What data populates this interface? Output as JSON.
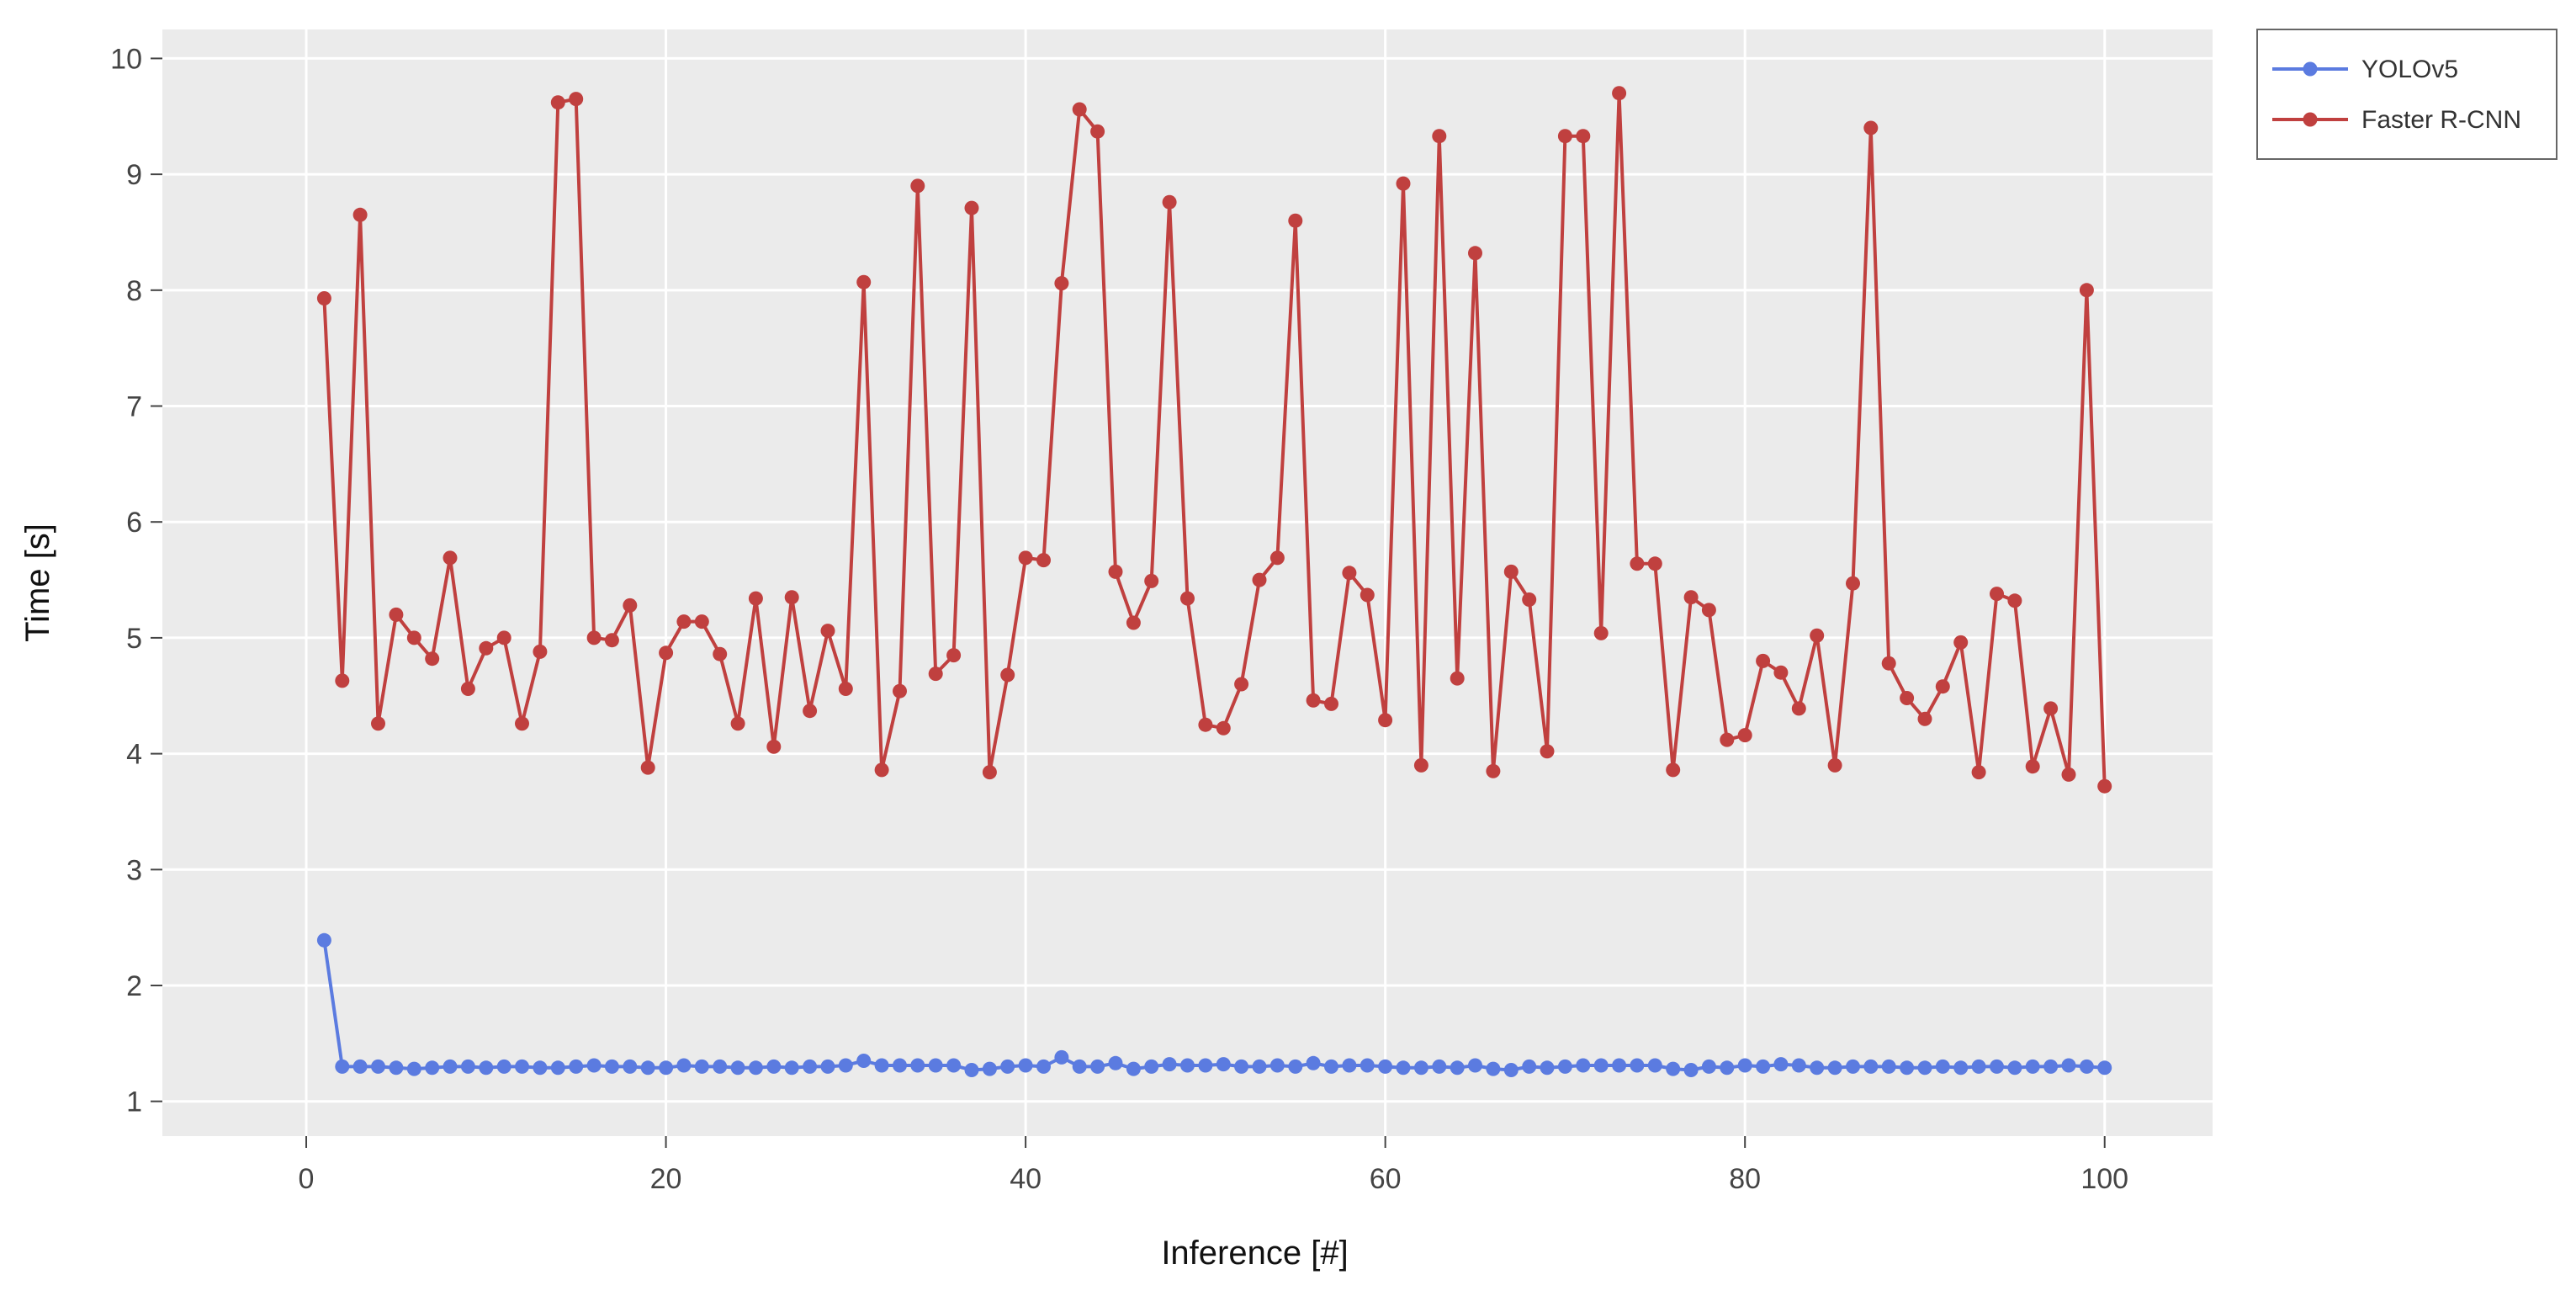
{
  "chart_data": {
    "type": "line",
    "title": "",
    "xlabel": "Inference [#]",
    "ylabel": "Time [s]",
    "xlim": [
      -8,
      106
    ],
    "ylim": [
      0.7,
      10.25
    ],
    "xticks": [
      0,
      20,
      40,
      60,
      80,
      100
    ],
    "yticks": [
      1,
      2,
      3,
      4,
      5,
      6,
      7,
      8,
      9,
      10
    ],
    "grid": true,
    "legend_position": "top-right",
    "x": [
      1,
      2,
      3,
      4,
      5,
      6,
      7,
      8,
      9,
      10,
      11,
      12,
      13,
      14,
      15,
      16,
      17,
      18,
      19,
      20,
      21,
      22,
      23,
      24,
      25,
      26,
      27,
      28,
      29,
      30,
      31,
      32,
      33,
      34,
      35,
      36,
      37,
      38,
      39,
      40,
      41,
      42,
      43,
      44,
      45,
      46,
      47,
      48,
      49,
      50,
      51,
      52,
      53,
      54,
      55,
      56,
      57,
      58,
      59,
      60,
      61,
      62,
      63,
      64,
      65,
      66,
      67,
      68,
      69,
      70,
      71,
      72,
      73,
      74,
      75,
      76,
      77,
      78,
      79,
      80,
      81,
      82,
      83,
      84,
      85,
      86,
      87,
      88,
      89,
      90,
      91,
      92,
      93,
      94,
      95,
      96,
      97,
      98,
      99,
      100
    ],
    "series": [
      {
        "name": "YOLOv5",
        "color": "#5B7BE0",
        "values": [
          2.39,
          1.3,
          1.3,
          1.3,
          1.29,
          1.28,
          1.29,
          1.3,
          1.3,
          1.29,
          1.3,
          1.3,
          1.29,
          1.29,
          1.3,
          1.31,
          1.3,
          1.3,
          1.29,
          1.29,
          1.31,
          1.3,
          1.3,
          1.29,
          1.29,
          1.3,
          1.29,
          1.3,
          1.3,
          1.31,
          1.35,
          1.31,
          1.31,
          1.31,
          1.31,
          1.31,
          1.27,
          1.28,
          1.3,
          1.31,
          1.3,
          1.38,
          1.3,
          1.3,
          1.33,
          1.28,
          1.3,
          1.32,
          1.31,
          1.31,
          1.32,
          1.3,
          1.3,
          1.31,
          1.3,
          1.33,
          1.3,
          1.31,
          1.31,
          1.3,
          1.29,
          1.29,
          1.3,
          1.29,
          1.31,
          1.28,
          1.27,
          1.3,
          1.29,
          1.3,
          1.31,
          1.31,
          1.31,
          1.31,
          1.31,
          1.28,
          1.27,
          1.3,
          1.29,
          1.31,
          1.3,
          1.32,
          1.31,
          1.29,
          1.29,
          1.3,
          1.3,
          1.3,
          1.29,
          1.29,
          1.3,
          1.29,
          1.3,
          1.3,
          1.29,
          1.3,
          1.3,
          1.31,
          1.3,
          1.29
        ]
      },
      {
        "name": "Faster R-CNN",
        "color": "#C0403F",
        "values": [
          7.93,
          4.63,
          8.65,
          4.26,
          5.2,
          5.0,
          4.82,
          5.69,
          4.56,
          4.91,
          5.0,
          4.26,
          4.88,
          9.62,
          9.65,
          5.0,
          4.98,
          5.28,
          3.88,
          4.87,
          5.14,
          5.14,
          4.86,
          4.26,
          5.34,
          4.06,
          5.35,
          4.37,
          5.06,
          4.56,
          8.07,
          3.86,
          4.54,
          8.9,
          4.69,
          4.85,
          8.71,
          3.84,
          4.68,
          5.69,
          5.67,
          8.06,
          9.56,
          9.37,
          5.57,
          5.13,
          5.49,
          8.76,
          5.34,
          4.25,
          4.22,
          4.6,
          5.5,
          5.69,
          8.6,
          4.46,
          4.43,
          5.56,
          5.37,
          4.29,
          8.92,
          3.9,
          9.33,
          4.65,
          8.32,
          3.85,
          5.57,
          5.33,
          4.02,
          9.33,
          9.33,
          5.04,
          9.7,
          5.64,
          5.64,
          3.86,
          5.35,
          5.24,
          4.12,
          4.16,
          4.8,
          4.7,
          4.39,
          5.02,
          3.9,
          5.47,
          9.4,
          4.78,
          4.48,
          4.3,
          4.58,
          4.96,
          3.84,
          5.38,
          5.32,
          3.89,
          4.39,
          3.82,
          8.0,
          3.72
        ]
      }
    ]
  }
}
